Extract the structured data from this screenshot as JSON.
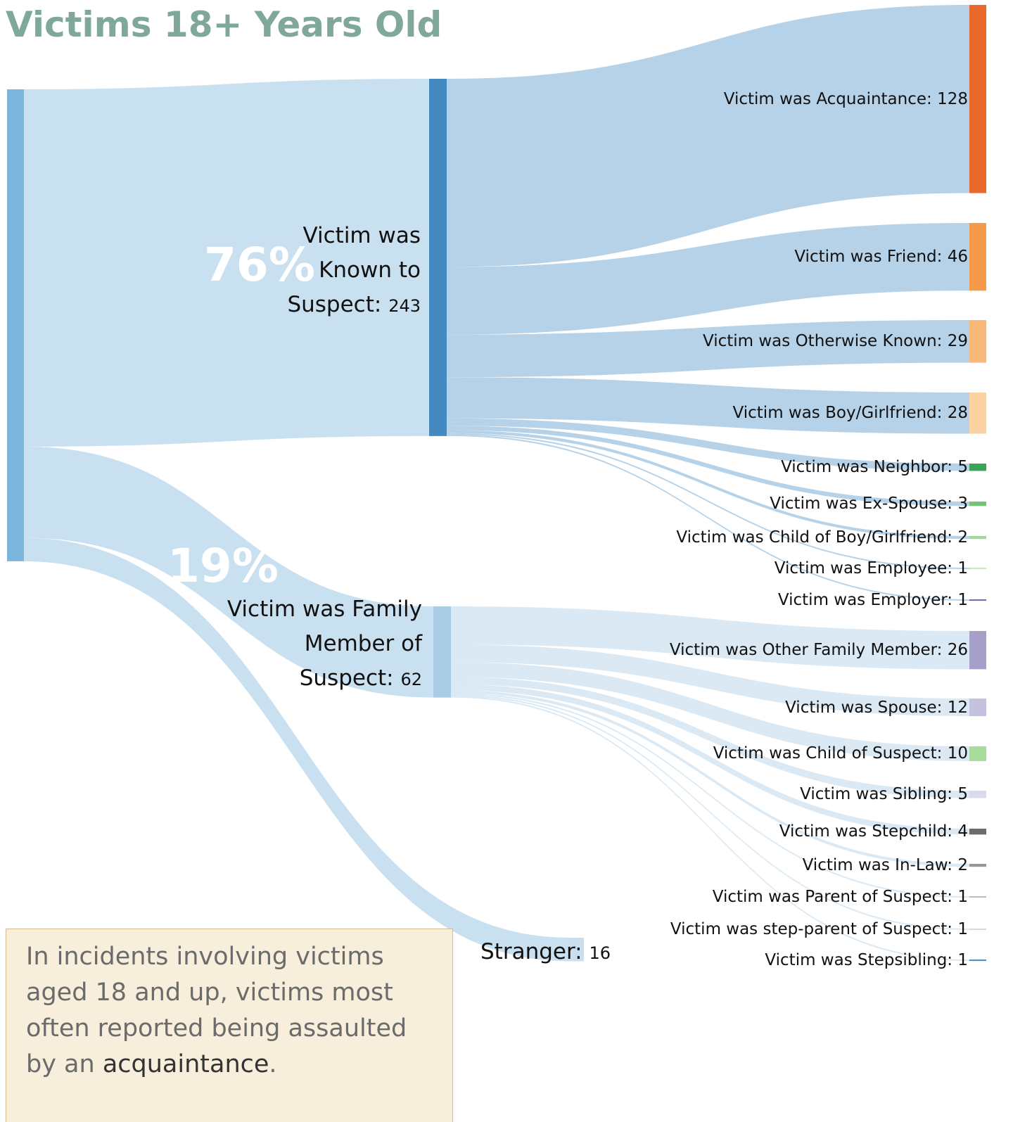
{
  "chart_data": {
    "type": "sankey",
    "title": "Victims 18+ Years Old",
    "root_color": "#7db6dc",
    "nodes": [
      {
        "name": "Victim was Known to Suspect:",
        "value": 243,
        "color": "#4589c1",
        "link_color": "#c3ddef",
        "child_link_color": "#aecde5",
        "children": [
          {
            "name": "Victim was Acquaintance:",
            "value": 128,
            "color": "#e8692a"
          },
          {
            "name": "Victim was Friend:",
            "value": 46,
            "color": "#f5994b"
          },
          {
            "name": "Victim was Otherwise Known:",
            "value": 29,
            "color": "#f8b878"
          },
          {
            "name": "Victim was Boy/Girlfriend:",
            "value": 28,
            "color": "#fbd3a3"
          },
          {
            "name": "Victim was Neighbor:",
            "value": 5,
            "color": "#3aa35a"
          },
          {
            "name": "Victim was Ex-Spouse:",
            "value": 3,
            "color": "#73c476"
          },
          {
            "name": "Victim was Child of Boy/Girlfriend:",
            "value": 2,
            "color": "#a1d99b"
          },
          {
            "name": "Victim was Employee:",
            "value": 1,
            "color": "#c7e9c0"
          },
          {
            "name": "Victim was Employer:",
            "value": 1,
            "color": "#756bb1"
          }
        ]
      },
      {
        "name": "Victim was Family Member of Suspect:",
        "value": 62,
        "color": "#a8cde4",
        "link_color": "#c3ddef",
        "child_link_color": "#d6e7f3",
        "children": [
          {
            "name": "Victim was Other Family Member:",
            "value": 26,
            "color": "#a59fca"
          },
          {
            "name": "Victim was Spouse:",
            "value": 12,
            "color": "#c4c2de"
          },
          {
            "name": "Victim was Child of Suspect:",
            "value": 10,
            "color": "#a8dc9c"
          },
          {
            "name": "Victim was Sibling:",
            "value": 5,
            "color": "#dadaeb"
          },
          {
            "name": "Victim was Stepchild:",
            "value": 4,
            "color": "#6b6b6b"
          },
          {
            "name": "Victim was In-Law:",
            "value": 2,
            "color": "#969696"
          },
          {
            "name": "Victim was Parent of Suspect:",
            "value": 1,
            "color": "#bdbdbd"
          },
          {
            "name": "Victim was step-parent of Suspect:",
            "value": 1,
            "color": "#d9d9d9"
          },
          {
            "name": "Victim was Stepsibling:",
            "value": 1,
            "color": "#4c8fc8"
          }
        ]
      },
      {
        "name": "Stranger:",
        "value": 16,
        "color": "#c9dff0",
        "link_color": "#c3ddef",
        "children": []
      }
    ],
    "annotations": [
      "76%",
      "19%"
    ],
    "note": {
      "text": "In incidents involving victims aged 18 and up, victims most often reported being assaulted by an",
      "highlight": "acquaintance",
      "end": "."
    }
  }
}
